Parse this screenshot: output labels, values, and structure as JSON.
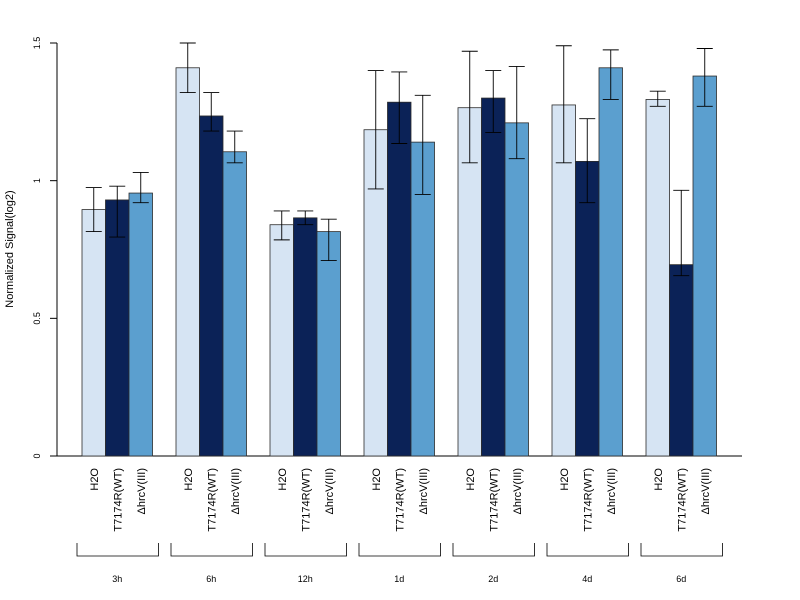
{
  "chart_data": {
    "type": "bar",
    "ylabel": "Normalized Signal(log2)",
    "xlabel": "",
    "ylim": [
      0,
      1.5
    ],
    "yticks": [
      0,
      0.5,
      1,
      1.5
    ],
    "ytick_labels": [
      "0",
      "0.5",
      "1",
      "1.5"
    ],
    "groups": [
      "3h",
      "6h",
      "12h",
      "1d",
      "2d",
      "4d",
      "6d"
    ],
    "series": [
      {
        "name": "H2O",
        "color": "#d6e4f3",
        "values": [
          0.895,
          1.41,
          0.84,
          1.185,
          1.265,
          1.275,
          1.295
        ],
        "err_low": [
          0.815,
          1.32,
          0.785,
          0.97,
          1.065,
          1.065,
          1.27
        ],
        "err_high": [
          0.975,
          1.5,
          0.89,
          1.4,
          1.47,
          1.49,
          1.325
        ]
      },
      {
        "name": "T7174R(WT)",
        "color": "#0b2257",
        "values": [
          0.93,
          1.235,
          0.865,
          1.285,
          1.3,
          1.07,
          0.695
        ],
        "err_low": [
          0.795,
          1.18,
          0.84,
          1.135,
          1.175,
          0.92,
          0.655
        ],
        "err_high": [
          0.98,
          1.32,
          0.89,
          1.395,
          1.4,
          1.225,
          0.965
        ]
      },
      {
        "name": "ΔhrcV(III)",
        "color": "#5b9fcf",
        "values": [
          0.955,
          1.105,
          0.815,
          1.14,
          1.21,
          1.41,
          1.38
        ],
        "err_low": [
          0.92,
          1.065,
          0.71,
          0.95,
          1.08,
          1.295,
          1.27
        ],
        "err_high": [
          1.03,
          1.18,
          0.86,
          1.31,
          1.415,
          1.475,
          1.48
        ]
      }
    ],
    "grid": false,
    "legend": "none"
  }
}
